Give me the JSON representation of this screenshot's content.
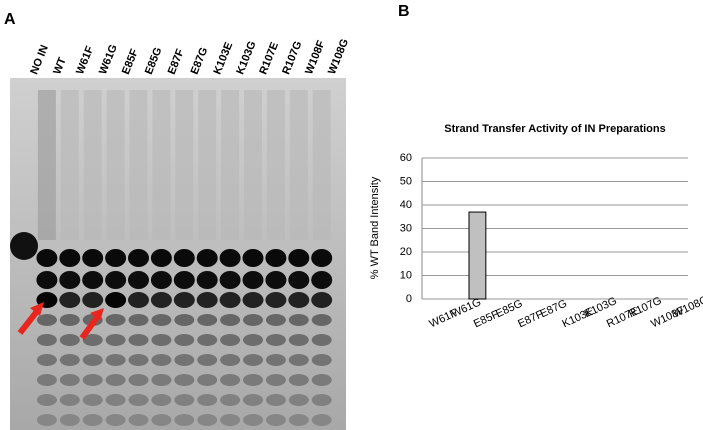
{
  "panel_labels": [
    "A",
    "B"
  ],
  "gel": {
    "lanes": [
      "NO IN",
      "WT",
      "W61F",
      "W61G",
      "E85F",
      "E85G",
      "E87F",
      "E87G",
      "K103E",
      "K103G",
      "R107E",
      "R107G",
      "W108F",
      "W108G"
    ]
  },
  "chart_data": {
    "type": "bar",
    "title": "Strand Transfer Activity of IN Preparations",
    "y_label": "% WT Band Intensity",
    "categories": [
      "W61F",
      "W61G",
      "E85F",
      "E85G",
      "E87F",
      "E87G",
      "K103E",
      "K103G",
      "R107E",
      "R107G",
      "W108F",
      "W108G"
    ],
    "values": [
      0,
      0,
      37,
      0,
      0,
      0,
      0,
      0,
      0,
      0,
      0,
      0
    ],
    "color": "#c0c0c0",
    "ylim": [
      0,
      60
    ],
    "yticks": [
      0,
      10,
      20,
      30,
      40,
      50,
      60
    ],
    "grid": true
  }
}
